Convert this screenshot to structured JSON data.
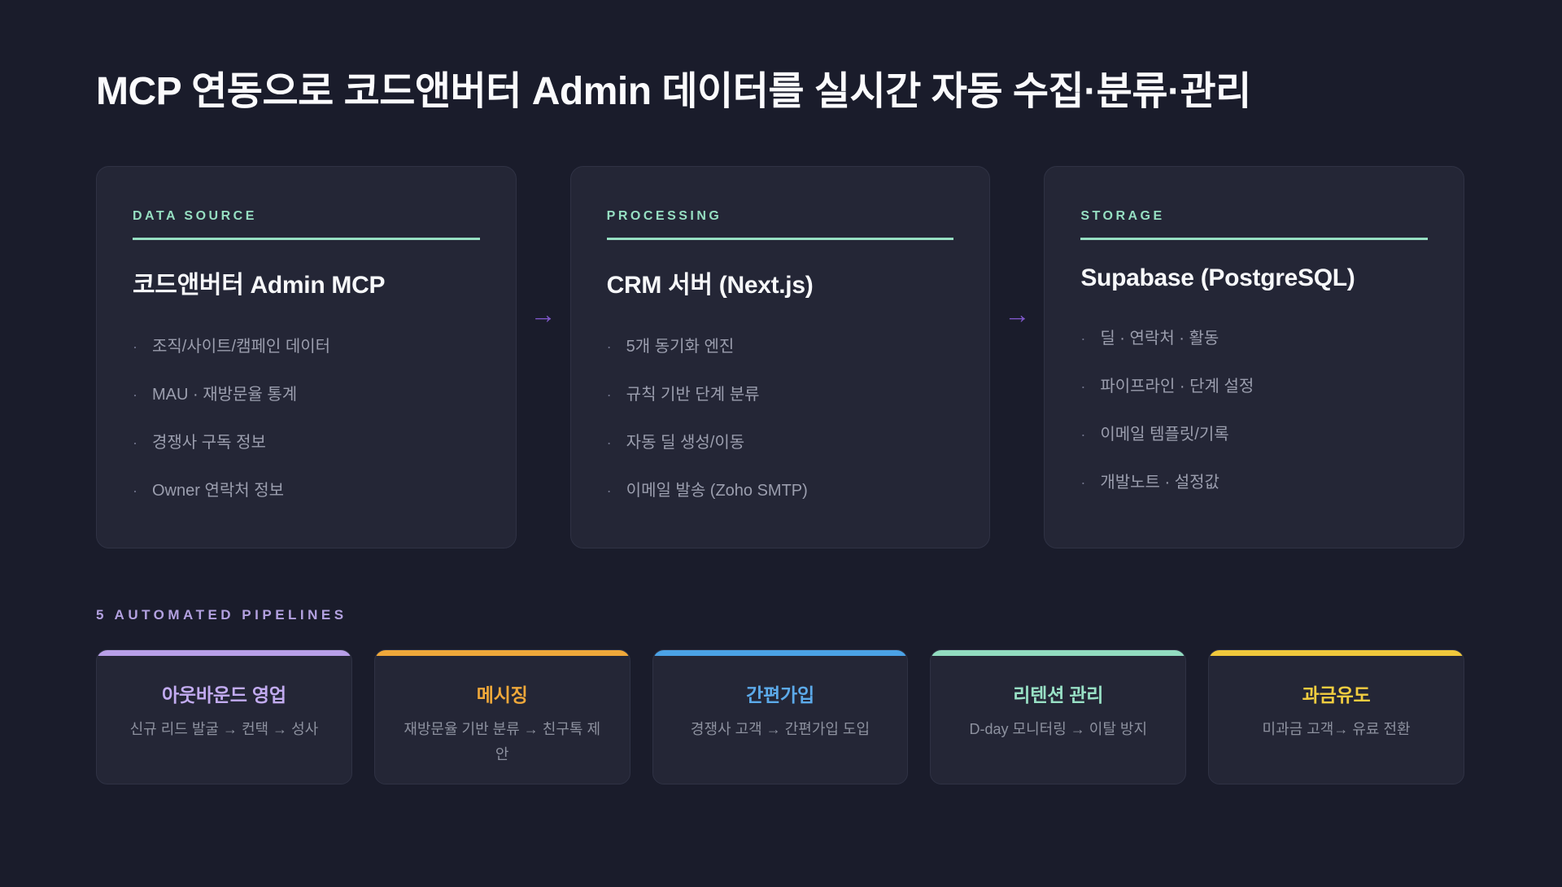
{
  "page": {
    "title": "MCP 연동으로 코드앤버터 Admin 데이터를 실시간 자동 수집·분류·관리"
  },
  "colors": {
    "background": "#1a1c2b",
    "card_background": "#242636",
    "mint_accent": "#96dfc2",
    "arrow_purple": "#7e57c8",
    "pipelines_heading_lavender": "#b3a1e0"
  },
  "flow": {
    "arrow_glyph": "→",
    "cards": [
      {
        "label": "DATA SOURCE",
        "title": "코드앤버터 Admin MCP",
        "items": [
          "조직/사이트/캠페인 데이터",
          "MAU · 재방문율 통계",
          "경쟁사 구독 정보",
          "Owner 연락처 정보"
        ]
      },
      {
        "label": "PROCESSING",
        "title": "CRM 서버 (Next.js)",
        "items": [
          "5개 동기화 엔진",
          "규칙 기반 단계 분류",
          "자동 딜 생성/이동",
          "이메일 발송 (Zoho SMTP)"
        ]
      },
      {
        "label": "STORAGE",
        "title": "Supabase (PostgreSQL)",
        "items": [
          "딜 · 연락처 · 활동",
          "파이프라인 · 단계 설정",
          "이메일 템플릿/기록",
          "개발노트 · 설정값"
        ]
      }
    ]
  },
  "pipelines": {
    "heading": "5 AUTOMATED PIPELINES",
    "cards": [
      {
        "title": "아웃바운드 영업",
        "subtitle": "신규 리드 발굴 → 컨택 → 성사",
        "accent": "#b89fe8",
        "title_color": "#c2abf0"
      },
      {
        "title": "메시징",
        "subtitle": "재방문율 기반 분류 → 친구톡 제안",
        "accent": "#efa83a",
        "title_color": "#efa83a"
      },
      {
        "title": "간편가입",
        "subtitle": "경쟁사 고객 → 간편가입 도입",
        "accent": "#4ba2e6",
        "title_color": "#5caaea"
      },
      {
        "title": "리텐션 관리",
        "subtitle": "D-day 모니터링 → 이탈 방지",
        "accent": "#92dcc0",
        "title_color": "#98e0c5"
      },
      {
        "title": "과금유도",
        "subtitle": "미과금 고객→ 유료 전환",
        "accent": "#f0c83c",
        "title_color": "#f2cd40"
      }
    ]
  }
}
